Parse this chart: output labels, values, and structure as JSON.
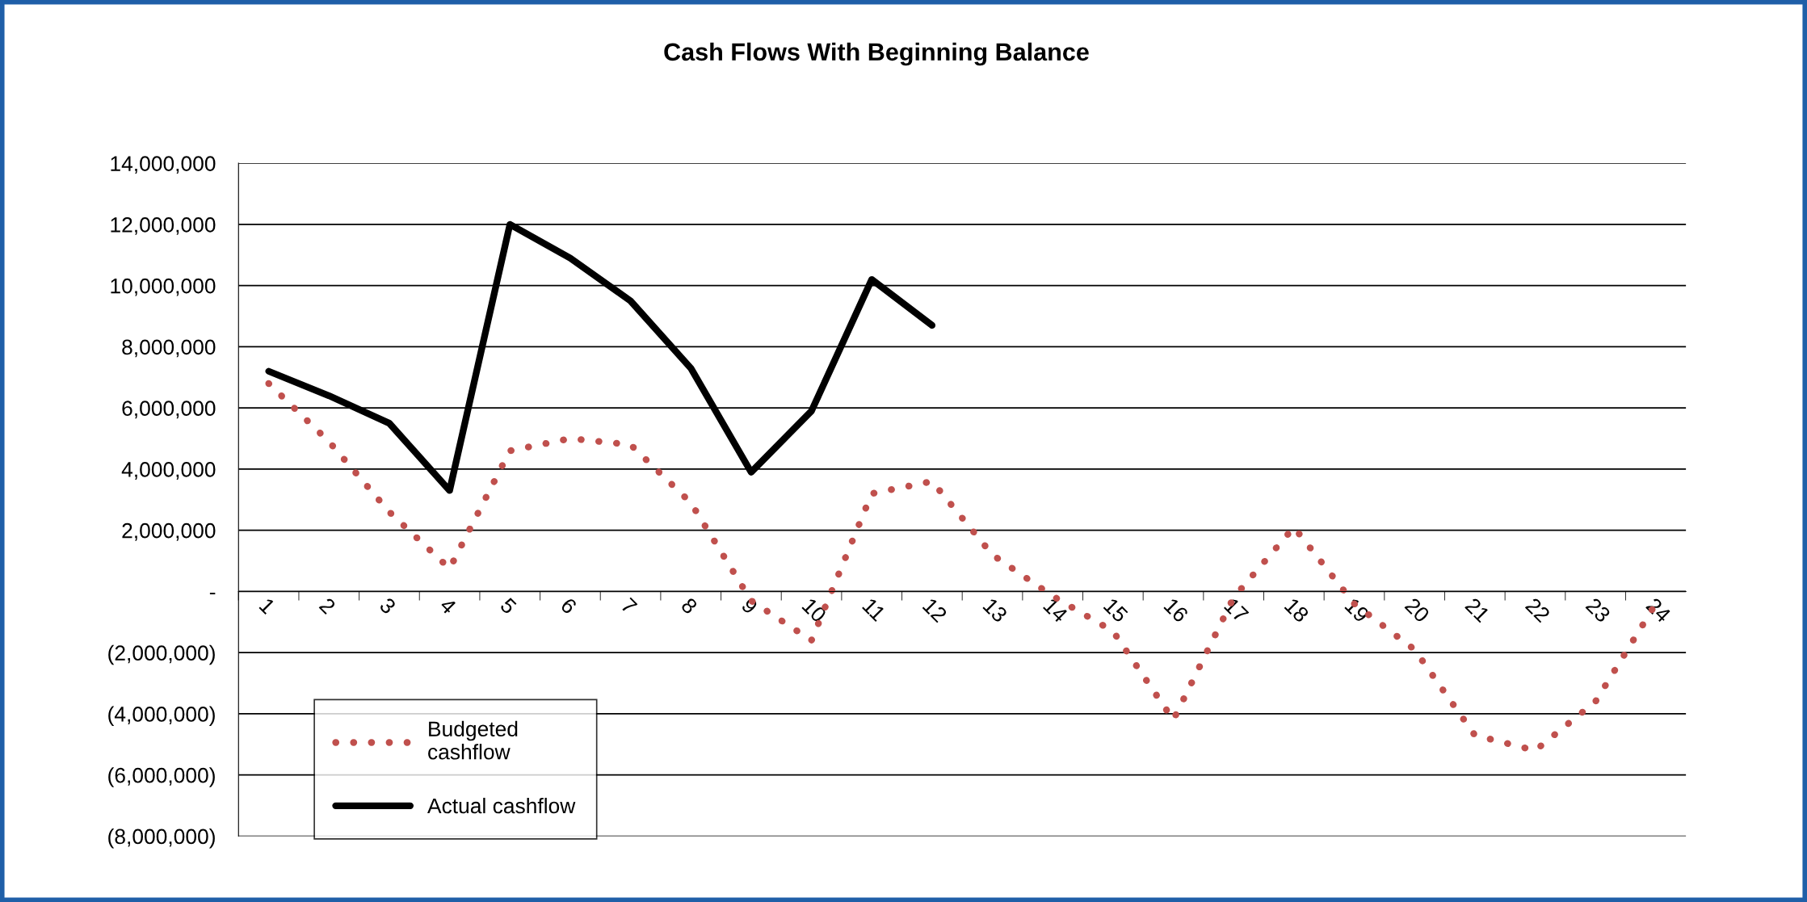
{
  "chart_data": {
    "type": "line",
    "title": "Cash Flows With Beginning Balance",
    "categories": [
      "1",
      "2",
      "3",
      "4",
      "5",
      "6",
      "7",
      "8",
      "9",
      "10",
      "11",
      "12",
      "13",
      "14",
      "15",
      "16",
      "17",
      "18",
      "19",
      "20",
      "21",
      "22",
      "23",
      "24"
    ],
    "series": [
      {
        "name": "Budgeted cashflow",
        "color": "#c0504d",
        "line_style": "dotted",
        "values": [
          6800000,
          4900000,
          2600000,
          750000,
          4600000,
          5000000,
          4800000,
          2900000,
          -300000,
          -1600000,
          3200000,
          3600000,
          1200000,
          -150000,
          -1300000,
          -4200000,
          -200000,
          2100000,
          -400000,
          -1900000,
          -4700000,
          -5200000,
          -3600000,
          -400000
        ]
      },
      {
        "name": "Actual cashflow",
        "color": "#000000",
        "line_style": "solid",
        "values": [
          7200000,
          6400000,
          5500000,
          3300000,
          12000000,
          10900000,
          9500000,
          7300000,
          3900000,
          5900000,
          10200000,
          8700000,
          null,
          null,
          null,
          null,
          null,
          null,
          null,
          null,
          null,
          null,
          null,
          null
        ]
      }
    ],
    "ylim": [
      -8000000,
      14000000
    ],
    "yticks": [
      {
        "value": -8000000,
        "label": "(8,000,000)"
      },
      {
        "value": -6000000,
        "label": "(6,000,000)"
      },
      {
        "value": -4000000,
        "label": "(4,000,000)"
      },
      {
        "value": -2000000,
        "label": "(2,000,000)"
      },
      {
        "value": 0,
        "label": "-"
      },
      {
        "value": 2000000,
        "label": "2,000,000"
      },
      {
        "value": 4000000,
        "label": "4,000,000"
      },
      {
        "value": 6000000,
        "label": "6,000,000"
      },
      {
        "value": 8000000,
        "label": "8,000,000"
      },
      {
        "value": 10000000,
        "label": "10,000,000"
      },
      {
        "value": 12000000,
        "label": "12,000,000"
      },
      {
        "value": 14000000,
        "label": "14,000,000"
      }
    ],
    "grid": "y",
    "legend": "bottom left",
    "marker": "none"
  }
}
